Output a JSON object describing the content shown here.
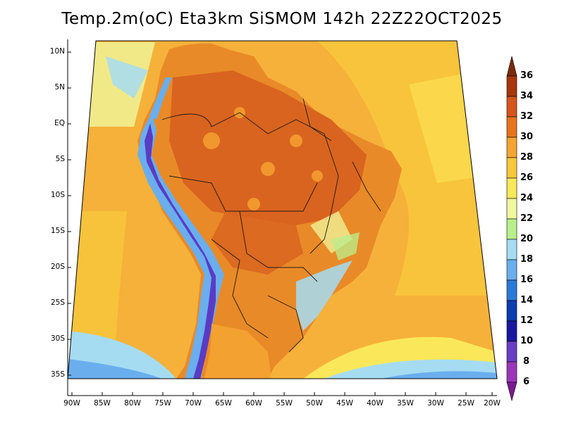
{
  "title": "Temp.2m(oC) Eta3km SiSMOM 142h 22Z22OCT2025",
  "lat_ticks": [
    "10N",
    "5N",
    "EQ",
    "5S",
    "10S",
    "15S",
    "20S",
    "25S",
    "30S",
    "35S"
  ],
  "lon_ticks": [
    "90W",
    "85W",
    "80W",
    "75W",
    "70W",
    "65W",
    "60W",
    "55W",
    "50W",
    "45W",
    "40W",
    "35W",
    "30W",
    "25W",
    "20W"
  ],
  "colorbar": {
    "labels": [
      "36",
      "34",
      "32",
      "30",
      "28",
      "26",
      "24",
      "22",
      "20",
      "18",
      "16",
      "14",
      "12",
      "10",
      "8",
      "6"
    ],
    "colors": [
      "#7a2a0a",
      "#a8360c",
      "#d4561c",
      "#e8741c",
      "#f5a431",
      "#f8c83c",
      "#fbe85a",
      "#f0f79c",
      "#b8ef8c",
      "#a5dcf2",
      "#6aaeee",
      "#2a7ad8",
      "#0c3cb0",
      "#1a18a0",
      "#6a3ec4",
      "#9a36b8",
      "#7a1a90"
    ]
  },
  "colors": {
    "ocean": "#f6b13a",
    "land_hot": "#d9641f",
    "land_mid": "#e98a28",
    "andes_cold": "#5a3cc4",
    "coast_cool": "#a5dcf2"
  }
}
